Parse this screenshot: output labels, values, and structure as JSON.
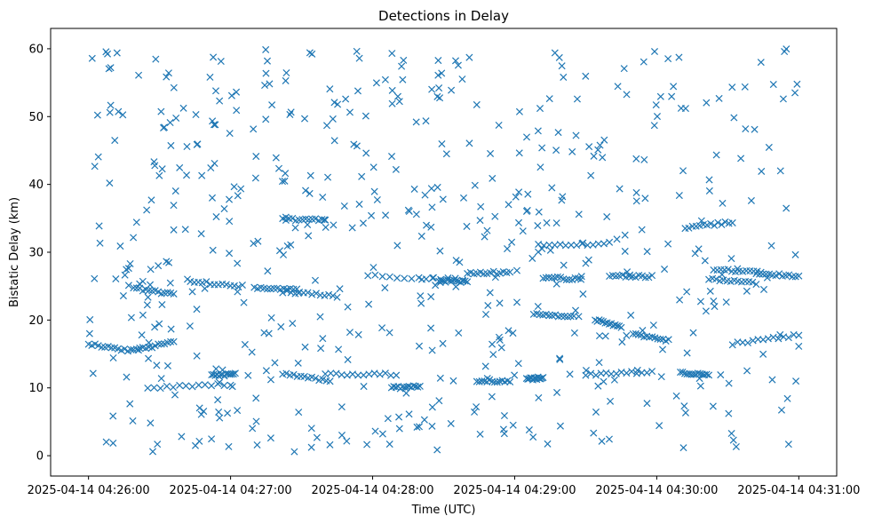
{
  "chart_data": {
    "type": "scatter",
    "title": "Detections in Delay",
    "xlabel": "Time (UTC)",
    "ylabel": "Bistatic Delay (km)",
    "x_unit": "seconds after 2025-04-14 04:26:00",
    "xlim": [
      -16,
      316
    ],
    "ylim": [
      -3,
      63
    ],
    "xticks": [
      0,
      60,
      120,
      180,
      240,
      300
    ],
    "xtick_labels": [
      "2025-04-14 04:26:00",
      "2025-04-14 04:27:00",
      "2025-04-14 04:28:00",
      "2025-04-14 04:29:00",
      "2025-04-14 04:30:00",
      "2025-04-14 04:31:00"
    ],
    "yticks": [
      0,
      10,
      20,
      30,
      40,
      50,
      60
    ],
    "ytick_labels": [
      "0",
      "10",
      "20",
      "30",
      "40",
      "50",
      "60"
    ],
    "marker": "x",
    "color": "#1f77b4",
    "tracks": [
      {
        "t0": 0,
        "t1": 18,
        "y0": 16.5,
        "y1": 15.5
      },
      {
        "t0": 19,
        "t1": 36,
        "y0": 15.5,
        "y1": 16.8
      },
      {
        "t0": 19,
        "t1": 36,
        "y0": 24.7,
        "y1": 23.8
      },
      {
        "t0": 25,
        "t1": 60,
        "y0": 10.0,
        "y1": 10.5
      },
      {
        "t0": 43,
        "t1": 65,
        "y0": 25.7,
        "y1": 25.0
      },
      {
        "t0": 52,
        "t1": 62,
        "y0": 11.8,
        "y1": 12.0
      },
      {
        "t0": 70,
        "t1": 88,
        "y0": 24.7,
        "y1": 24.5
      },
      {
        "t0": 82,
        "t1": 105,
        "y0": 24.2,
        "y1": 23.5
      },
      {
        "t0": 82,
        "t1": 100,
        "y0": 34.8,
        "y1": 34.8
      },
      {
        "t0": 82,
        "t1": 102,
        "y0": 12.2,
        "y1": 11.0
      },
      {
        "t0": 100,
        "t1": 130,
        "y0": 12.0,
        "y1": 12.0
      },
      {
        "t0": 118,
        "t1": 158,
        "y0": 26.5,
        "y1": 26.0
      },
      {
        "t0": 128,
        "t1": 140,
        "y0": 10.0,
        "y1": 10.2
      },
      {
        "t0": 148,
        "t1": 160,
        "y0": 25.8,
        "y1": 25.6
      },
      {
        "t0": 160,
        "t1": 178,
        "y0": 27.0,
        "y1": 27.0
      },
      {
        "t0": 164,
        "t1": 178,
        "y0": 11.0,
        "y1": 11.0
      },
      {
        "t0": 185,
        "t1": 192,
        "y0": 11.3,
        "y1": 11.5
      },
      {
        "t0": 188,
        "t1": 205,
        "y0": 21.0,
        "y1": 20.5
      },
      {
        "t0": 190,
        "t1": 220,
        "y0": 31.0,
        "y1": 31.3
      },
      {
        "t0": 192,
        "t1": 208,
        "y0": 26.3,
        "y1": 26.0
      },
      {
        "t0": 210,
        "t1": 238,
        "y0": 12.0,
        "y1": 12.4
      },
      {
        "t0": 214,
        "t1": 225,
        "y0": 20.0,
        "y1": 19.0
      },
      {
        "t0": 220,
        "t1": 238,
        "y0": 26.5,
        "y1": 26.4
      },
      {
        "t0": 230,
        "t1": 245,
        "y0": 18.0,
        "y1": 17.0
      },
      {
        "t0": 250,
        "t1": 262,
        "y0": 12.2,
        "y1": 12.0
      },
      {
        "t0": 252,
        "t1": 272,
        "y0": 33.5,
        "y1": 34.5
      },
      {
        "t0": 262,
        "t1": 282,
        "y0": 26.0,
        "y1": 25.4
      },
      {
        "t0": 264,
        "t1": 284,
        "y0": 27.5,
        "y1": 27.0
      },
      {
        "t0": 272,
        "t1": 300,
        "y0": 16.5,
        "y1": 17.8
      },
      {
        "t0": 282,
        "t1": 300,
        "y0": 26.8,
        "y1": 26.5
      }
    ],
    "n_tracks_points_per_track": 14,
    "n_noise_points": 560
  }
}
